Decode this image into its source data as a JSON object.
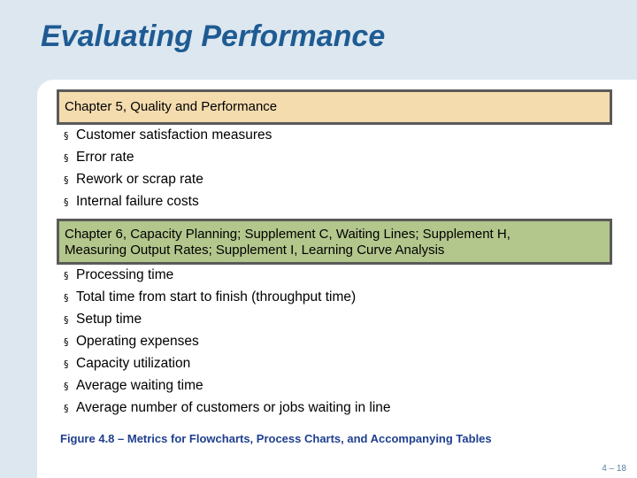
{
  "title": "Evaluating Performance",
  "section1": {
    "heading": "Chapter 5, Quality and Performance",
    "items": [
      "Customer satisfaction measures",
      "Error rate",
      "Rework or scrap rate",
      "Internal failure costs"
    ]
  },
  "section2": {
    "heading_line1": "Chapter 6, Capacity Planning; Supplement C, Waiting Lines; Supplement H,",
    "heading_line2": "Measuring Output Rates; Supplement I, Learning Curve Analysis",
    "items": [
      "Processing time",
      "Total time from start to finish (throughput time)",
      "Setup time",
      "Operating expenses",
      "Capacity utilization",
      "Average waiting time",
      "Average number of customers or jobs waiting in line"
    ]
  },
  "bullet_symbol": "§",
  "caption": "Figure 4.8 –  Metrics for Flowcharts, Process Charts, and Accompanying Tables",
  "page_number": "4 – 18",
  "colors": {
    "title": "#1f5b93",
    "tan_banner": "#f5dcae",
    "green_banner": "#b3c68c",
    "caption": "#1f3f8f",
    "background": "#dce7f0"
  }
}
